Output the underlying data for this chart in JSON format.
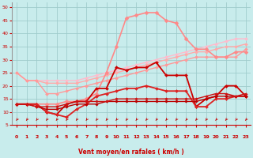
{
  "xlabel": "Vent moyen/en rafales ( km/h )",
  "xlim": [
    -0.5,
    23.5
  ],
  "ylim": [
    5,
    52
  ],
  "yticks": [
    5,
    10,
    15,
    20,
    25,
    30,
    35,
    40,
    45,
    50
  ],
  "xticks": [
    0,
    1,
    2,
    3,
    4,
    5,
    6,
    7,
    8,
    9,
    10,
    11,
    12,
    13,
    14,
    15,
    16,
    17,
    18,
    19,
    20,
    21,
    22,
    23
  ],
  "bg_color": "#c8ecec",
  "grid_color": "#a0cccc",
  "series": [
    {
      "x": [
        0,
        1,
        2,
        3,
        4,
        5,
        6,
        7,
        8,
        9,
        10,
        11,
        12,
        13,
        14,
        15,
        16,
        17,
        18,
        19,
        20,
        21,
        22,
        23
      ],
      "y": [
        25,
        22,
        22,
        22,
        22,
        22,
        22,
        23,
        24,
        25,
        26,
        27,
        28,
        29,
        30,
        31,
        32,
        33,
        34,
        35,
        36,
        37,
        38,
        38
      ],
      "color": "#ffbbcc",
      "lw": 1.0,
      "marker": "D",
      "ms": 2.0
    },
    {
      "x": [
        0,
        1,
        2,
        3,
        4,
        5,
        6,
        7,
        8,
        9,
        10,
        11,
        12,
        13,
        14,
        15,
        16,
        17,
        18,
        19,
        20,
        21,
        22,
        23
      ],
      "y": [
        25,
        22,
        22,
        21,
        21,
        21,
        21,
        22,
        23,
        24,
        25,
        26,
        27,
        28,
        29,
        30,
        31,
        32,
        33,
        33,
        34,
        35,
        35,
        36
      ],
      "color": "#ffaaaa",
      "lw": 1.0,
      "marker": "D",
      "ms": 2.0
    },
    {
      "x": [
        0,
        1,
        2,
        3,
        4,
        5,
        6,
        7,
        8,
        9,
        10,
        11,
        12,
        13,
        14,
        15,
        16,
        17,
        18,
        19,
        20,
        21,
        22,
        23
      ],
      "y": [
        25,
        22,
        22,
        17,
        17,
        18,
        19,
        20,
        21,
        22,
        23,
        24,
        25,
        26,
        27,
        28,
        29,
        30,
        31,
        31,
        31,
        31,
        31,
        34
      ],
      "color": "#ff9999",
      "lw": 1.0,
      "marker": "D",
      "ms": 2.0
    },
    {
      "x": [
        0,
        1,
        2,
        3,
        4,
        5,
        6,
        7,
        8,
        9,
        10,
        11,
        12,
        13,
        14,
        15,
        16,
        17,
        18,
        19,
        20,
        21,
        22,
        23
      ],
      "y": [
        13,
        13,
        13,
        13,
        13,
        14,
        14,
        15,
        17,
        25,
        35,
        46,
        47,
        48,
        48,
        45,
        44,
        38,
        34,
        34,
        31,
        31,
        33,
        33
      ],
      "color": "#ff8888",
      "lw": 1.2,
      "marker": "D",
      "ms": 2.5
    },
    {
      "x": [
        0,
        1,
        2,
        3,
        4,
        5,
        6,
        7,
        8,
        9,
        10,
        11,
        12,
        13,
        14,
        15,
        16,
        17,
        18,
        19,
        20,
        21,
        22,
        23
      ],
      "y": [
        13,
        13,
        13,
        10,
        9,
        13,
        14,
        14,
        19,
        19,
        27,
        26,
        27,
        27,
        29,
        24,
        24,
        24,
        12,
        15,
        16,
        20,
        20,
        16
      ],
      "color": "#cc0000",
      "lw": 1.3,
      "marker": "D",
      "ms": 2.0
    },
    {
      "x": [
        0,
        1,
        2,
        3,
        4,
        5,
        6,
        7,
        8,
        9,
        10,
        11,
        12,
        13,
        14,
        15,
        16,
        17,
        18,
        19,
        20,
        21,
        22,
        23
      ],
      "y": [
        13,
        13,
        13,
        10,
        9,
        8,
        11,
        13,
        16,
        17,
        18,
        19,
        19,
        20,
        19,
        18,
        18,
        18,
        12,
        12,
        15,
        15,
        16,
        16
      ],
      "color": "#dd2222",
      "lw": 1.3,
      "marker": "D",
      "ms": 2.0
    },
    {
      "x": [
        0,
        1,
        2,
        3,
        4,
        5,
        6,
        7,
        8,
        9,
        10,
        11,
        12,
        13,
        14,
        15,
        16,
        17,
        18,
        19,
        20,
        21,
        22,
        23
      ],
      "y": [
        13,
        13,
        12,
        11,
        11,
        12,
        13,
        13,
        13,
        14,
        14,
        14,
        14,
        14,
        14,
        14,
        14,
        14,
        14,
        15,
        16,
        16,
        16,
        16
      ],
      "color": "#bb0000",
      "lw": 1.0,
      "marker": "D",
      "ms": 1.8
    },
    {
      "x": [
        0,
        1,
        2,
        3,
        4,
        5,
        6,
        7,
        8,
        9,
        10,
        11,
        12,
        13,
        14,
        15,
        16,
        17,
        18,
        19,
        20,
        21,
        22,
        23
      ],
      "y": [
        13,
        13,
        12,
        12,
        12,
        13,
        14,
        14,
        14,
        14,
        15,
        15,
        15,
        15,
        15,
        15,
        15,
        15,
        15,
        16,
        17,
        17,
        16,
        17
      ],
      "color": "#cc1111",
      "lw": 1.0,
      "marker": "D",
      "ms": 1.8
    }
  ],
  "arrow_color": "#cc0000",
  "label_color": "#cc0000"
}
